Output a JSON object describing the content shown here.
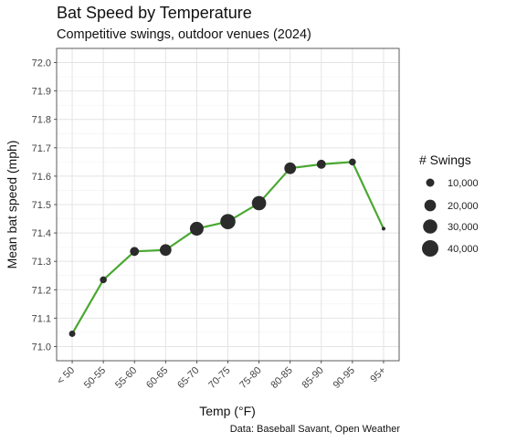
{
  "chart_data": {
    "type": "line",
    "title": "Bat Speed by Temperature",
    "subtitle": "Competitive swings, outdoor venues (2024)",
    "xlabel": "Temp (°F)",
    "ylabel": "Mean bat speed (mph)",
    "caption": "Data: Baseball Savant, Open Weather",
    "categories": [
      "< 50",
      "50-55",
      "55-60",
      "60-65",
      "65-70",
      "70-75",
      "75-80",
      "80-85",
      "85-90",
      "90-95",
      "95+"
    ],
    "values": [
      71.045,
      71.235,
      71.335,
      71.34,
      71.415,
      71.44,
      71.505,
      71.628,
      71.642,
      71.65,
      71.415
    ],
    "swings": [
      6000,
      7000,
      12000,
      20000,
      28000,
      34000,
      30000,
      20000,
      12000,
      7000,
      1200
    ],
    "ylim": [
      70.95,
      72.05
    ],
    "yticks": [
      71.0,
      71.1,
      71.2,
      71.3,
      71.4,
      71.5,
      71.6,
      71.7,
      71.8,
      71.9,
      72.0
    ],
    "line_color": "#4aa832",
    "point_color": "#2b2b2b",
    "grid": true,
    "legend": {
      "title": "# Swings",
      "placement": "right",
      "entries": [
        {
          "label": "10,000",
          "value": 10000
        },
        {
          "label": "20,000",
          "value": 20000
        },
        {
          "label": "30,000",
          "value": 30000
        },
        {
          "label": "40,000",
          "value": 40000
        }
      ]
    }
  }
}
